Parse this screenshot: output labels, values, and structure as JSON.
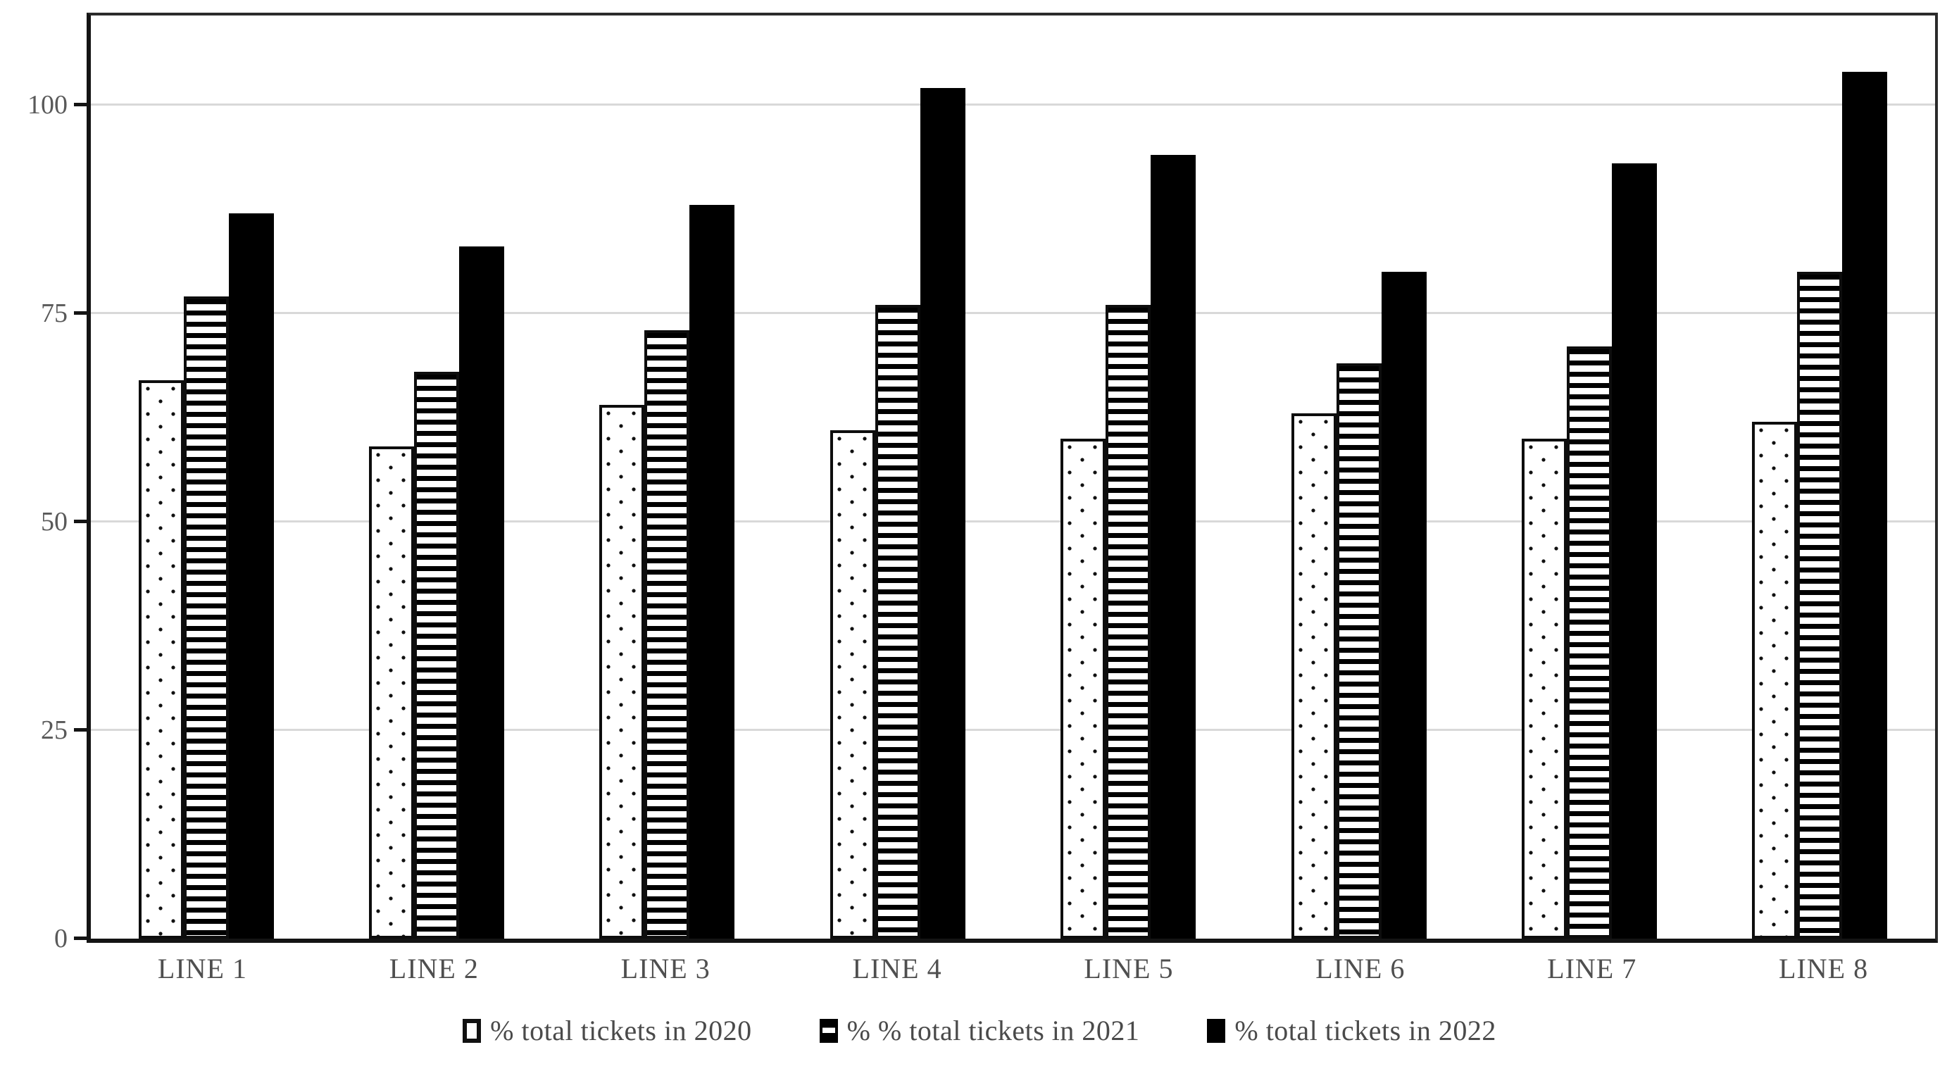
{
  "chart_data": {
    "type": "bar",
    "title": "",
    "xlabel": "",
    "ylabel": "",
    "categories": [
      "LINE 1",
      "LINE 2",
      "LINE 3",
      "LINE 4",
      "LINE 5",
      "LINE 6",
      "LINE 7",
      "LINE 8"
    ],
    "series": [
      {
        "name": "% total tickets in 2020",
        "pattern": "dots",
        "marker": "white-square-black-border",
        "values": [
          67,
          59,
          64,
          61,
          60,
          63,
          60,
          62
        ]
      },
      {
        "name": "% % total tickets in 2021",
        "pattern": "horizontal-stripes",
        "marker": "black-square-white-stripe",
        "values": [
          77,
          68,
          73,
          76,
          76,
          69,
          71,
          80
        ]
      },
      {
        "name": "% total tickets in 2022",
        "pattern": "solid-black",
        "marker": "black-square",
        "values": [
          87,
          83,
          88,
          102,
          94,
          80,
          93,
          104
        ]
      }
    ],
    "yticks": [
      0,
      25,
      50,
      75,
      100
    ],
    "ylim": [
      0,
      111
    ],
    "grid": "horizontal",
    "legend_position": "bottom"
  },
  "colors": {
    "bar_fill": "#000000",
    "bar_background": "#ffffff",
    "gridline": "#d9d9d9",
    "axis": "#141414",
    "tick_label": "#595959",
    "legend_text": "#4a4a4a"
  }
}
